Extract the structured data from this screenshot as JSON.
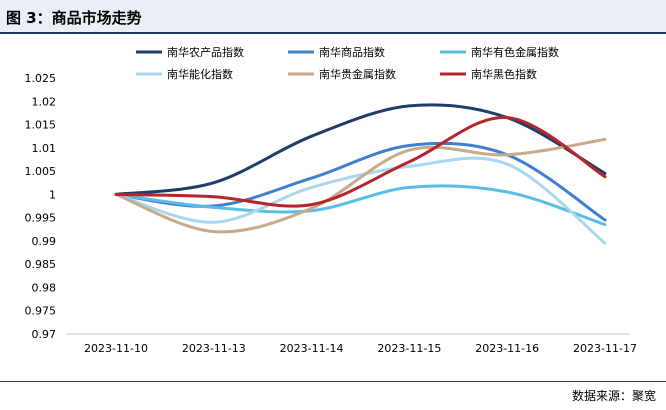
{
  "figure": {
    "label": "图 3：",
    "title": "商品市场走势"
  },
  "source": {
    "label": "数据来源：",
    "value": "聚宽"
  },
  "chart_data": {
    "type": "line",
    "x": [
      "2023-11-10",
      "2023-11-13",
      "2023-11-14",
      "2023-11-15",
      "2023-11-16",
      "2023-11-17"
    ],
    "ylim": [
      0.97,
      1.025
    ],
    "yticks": [
      0.97,
      0.975,
      0.98,
      0.985,
      0.99,
      0.995,
      1,
      1.005,
      1.01,
      1.015,
      1.02,
      1.025
    ],
    "grid": false,
    "legend_position": "top",
    "series": [
      {
        "name": "南华农产品指数",
        "color": "#1f3c6b",
        "values": [
          1.0,
          1.0025,
          1.0125,
          1.019,
          1.0165,
          1.0045
        ]
      },
      {
        "name": "南华商品指数",
        "color": "#3e7fcf",
        "values": [
          1.0,
          0.9975,
          1.0035,
          1.0105,
          1.0085,
          0.9945
        ]
      },
      {
        "name": "南华有色金属指数",
        "color": "#5bbde6",
        "values": [
          1.0,
          0.9972,
          0.9965,
          1.0015,
          1.0005,
          0.9935
        ]
      },
      {
        "name": "南华能化指数",
        "color": "#a8d8f0",
        "values": [
          1.0,
          0.994,
          1.0015,
          1.006,
          1.0065,
          0.9895
        ]
      },
      {
        "name": "南华贵金属指数",
        "color": "#c8a98a",
        "values": [
          1.0,
          0.992,
          0.997,
          1.0095,
          1.0085,
          1.0118
        ]
      },
      {
        "name": "南华黑色指数",
        "color": "#b5262c",
        "values": [
          1.0,
          0.9995,
          0.9978,
          1.007,
          1.0165,
          1.0038
        ]
      }
    ]
  }
}
